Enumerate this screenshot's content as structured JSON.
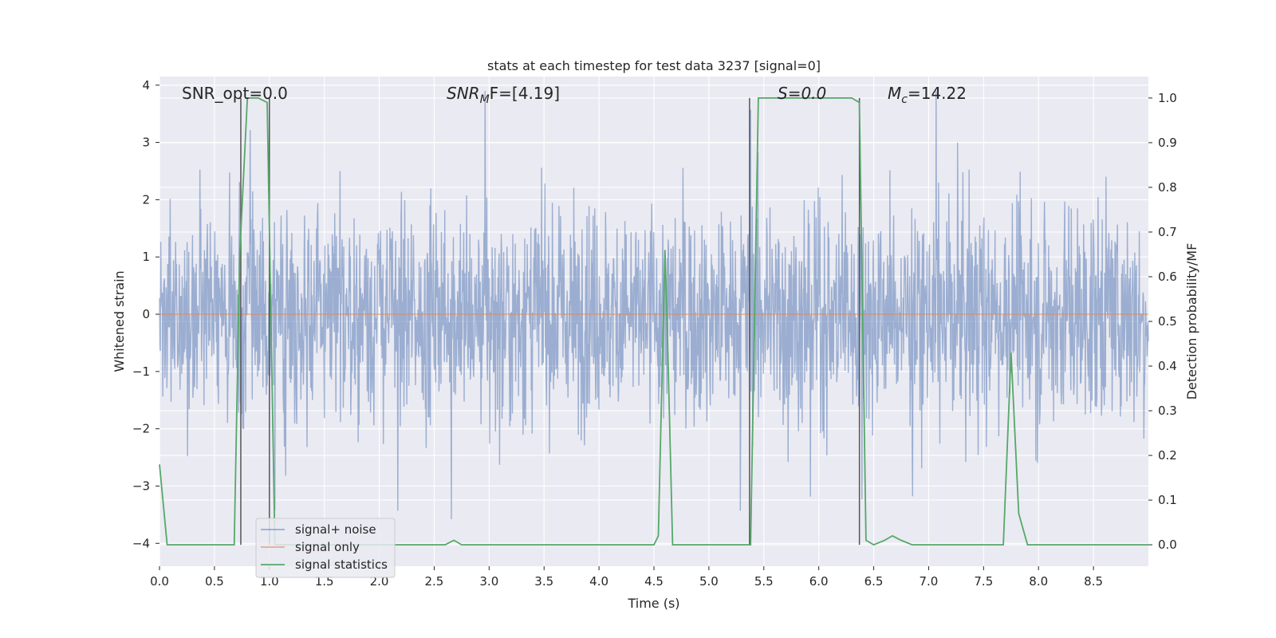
{
  "chart_data": {
    "type": "line",
    "title": "stats at each timestep for test data 3237 [signal=0]",
    "xlabel": "Time (s)",
    "ylabel": "Whitened strain",
    "y2label": "Detection probability/MF",
    "xlim": [
      0.0,
      9.0
    ],
    "ylim": [
      -4.4,
      4.15
    ],
    "y2lim": [
      -0.048,
      1.048
    ],
    "x_ticks": [
      "0.0",
      "0.5",
      "1.0",
      "1.5",
      "2.0",
      "2.5",
      "3.0",
      "3.5",
      "4.0",
      "4.5",
      "5.0",
      "5.5",
      "6.0",
      "6.5",
      "7.0",
      "7.5",
      "8.0",
      "8.5"
    ],
    "y_ticks": [
      "4",
      "3",
      "2",
      "1",
      "0",
      "−1",
      "−2",
      "−3",
      "−4"
    ],
    "y2_ticks": [
      "1.0",
      "0.9",
      "0.8",
      "0.7",
      "0.6",
      "0.5",
      "0.4",
      "0.3",
      "0.2",
      "0.1",
      "0.0"
    ],
    "grid": true,
    "legend_position": "lower-left",
    "colors": {
      "signal_noise": "#4c72b0",
      "signal_only": "#dd8452",
      "statistics": "#55a868",
      "marker_lines": "#555555",
      "axes_bg": "#eaeaf2"
    },
    "annotations": {
      "snr_opt": "SNR_opt=0.0",
      "snr_mf_base": "SNR",
      "snr_mf_sub": "M",
      "snr_mf_rest": "F=[4.19]",
      "s_label": "S=0.0",
      "mc_base": "M",
      "mc_sub": "c",
      "mc_rest": "=14.22"
    },
    "series": [
      {
        "name": "signal+ noise",
        "kind": "noise",
        "amplitude_typical": 1.5,
        "amplitude_peak": 3.9
      },
      {
        "name": "signal only",
        "kind": "flat",
        "values": [
          0.0
        ]
      },
      {
        "name": "signal statistics",
        "axis": "right",
        "x": [
          0.0,
          0.07,
          0.12,
          0.3,
          0.5,
          0.68,
          0.73,
          0.8,
          0.9,
          0.98,
          1.05,
          1.3,
          1.6,
          2.0,
          2.4,
          2.6,
          2.68,
          2.75,
          3.0,
          3.5,
          4.0,
          4.5,
          4.54,
          4.6,
          4.62,
          4.67,
          4.72,
          4.8,
          4.9,
          5.2,
          5.38,
          5.45,
          5.55,
          6.0,
          6.3,
          6.37,
          6.43,
          6.5,
          6.6,
          6.67,
          6.75,
          6.85,
          7.0,
          7.3,
          7.68,
          7.75,
          7.82,
          7.9,
          8.2,
          8.6,
          9.0
        ],
        "values": [
          0.18,
          0.0,
          0.0,
          0.0,
          0.0,
          0.0,
          0.65,
          1.0,
          1.0,
          0.99,
          0.0,
          0.0,
          0.0,
          0.0,
          0.0,
          0.0,
          0.01,
          0.0,
          0.0,
          0.0,
          0.0,
          0.0,
          0.02,
          0.66,
          0.5,
          0.0,
          0.0,
          0.0,
          0.0,
          0.0,
          0.0,
          1.0,
          1.0,
          1.0,
          1.0,
          0.99,
          0.01,
          0.0,
          0.01,
          0.02,
          0.01,
          0.0,
          0.0,
          0.0,
          0.0,
          0.43,
          0.07,
          0.0,
          0.0,
          0.0,
          0.0
        ]
      }
    ],
    "vertical_markers": [
      0.74,
      1.0,
      5.37,
      6.37
    ]
  }
}
